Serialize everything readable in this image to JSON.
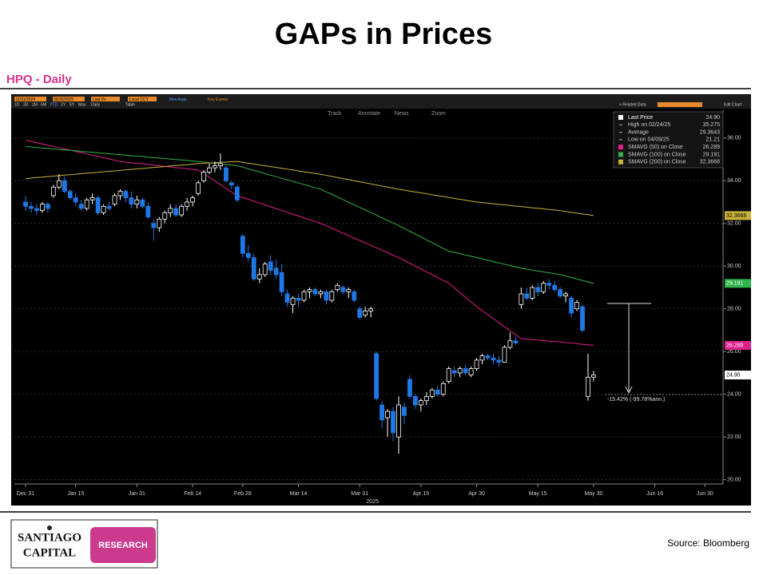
{
  "header": {
    "title": "GAPs in Prices",
    "subtitle": "HPQ - Daily"
  },
  "toolbar": {
    "start_date": "12/31/2024",
    "end_date": "05/30/2025",
    "field": "Last Px",
    "currency": "Local CCY",
    "ranges": [
      "1D",
      "3D",
      "1M",
      "6M",
      "YTD",
      "1Y",
      "5Y",
      "Max"
    ],
    "frequency": "Daily",
    "mov_avgs": "Mov Avgs",
    "key_events": "Key Events",
    "table": "Table",
    "related": "+ Related Data",
    "edit": "Edit Chart",
    "tools": [
      "Track",
      "Annotate",
      "News",
      "Zoom"
    ]
  },
  "chart_data": {
    "type": "candlestick",
    "categories": [
      "Dec 31",
      null,
      null,
      null,
      null,
      null,
      null,
      null,
      null,
      "Jan 15",
      null,
      null,
      null,
      null,
      null,
      null,
      null,
      null,
      null,
      null,
      "Jan 31",
      null,
      null,
      null,
      null,
      null,
      null,
      null,
      null,
      null,
      "Feb 14",
      null,
      null,
      null,
      null,
      null,
      null,
      null,
      null,
      "Feb 28",
      null,
      null,
      null,
      null,
      null,
      null,
      null,
      null,
      null,
      "Mar 14",
      null,
      null,
      null,
      null,
      null,
      null,
      null,
      null,
      null,
      null,
      "Mar 31",
      null,
      null,
      null,
      null,
      null,
      null,
      null,
      null,
      null,
      null,
      "Apr 15",
      null,
      null,
      null,
      null,
      null,
      null,
      null,
      null,
      null,
      "Apr 30",
      null,
      null,
      null,
      null,
      null,
      null,
      null,
      null,
      null,
      null,
      "May 15",
      null,
      null,
      null,
      null,
      null,
      null,
      null,
      null,
      null,
      "May 30",
      null,
      null,
      null,
      null,
      null,
      null,
      null,
      null,
      null,
      null,
      "Jun 16",
      null,
      null,
      null,
      null,
      null,
      null,
      null,
      null,
      "Jun 30"
    ],
    "year_label": "2025",
    "open": [
      33.0,
      32.8,
      32.7,
      32.6,
      32.9,
      33.3,
      33.7,
      34.0,
      33.5,
      33.2,
      32.9,
      32.7,
      33.1,
      33.2,
      32.5,
      32.8,
      32.9,
      33.3,
      33.5,
      33.2,
      32.9,
      33.1,
      32.8,
      32.0,
      31.8,
      32.2,
      32.5,
      32.7,
      32.4,
      32.8,
      33.0,
      33.4,
      34.0,
      34.4,
      34.6,
      34.7,
      34.6,
      33.9,
      33.7,
      31.4,
      30.6,
      30.4,
      29.4,
      29.6,
      30.2,
      29.9,
      29.7,
      28.7,
      28.2,
      28.5,
      28.4,
      28.8,
      28.9,
      28.7,
      28.8,
      28.4,
      28.9,
      29.0,
      28.8,
      28.8,
      28.0,
      27.7,
      27.9,
      25.9,
      23.5,
      22.9,
      23.2,
      22.0,
      23.4,
      24.7,
      23.9,
      23.5,
      23.7,
      23.9,
      24.2,
      24.0,
      24.6,
      25.1,
      25.0,
      25.2,
      24.9,
      25.2,
      25.6,
      25.8,
      25.7,
      25.6,
      25.5,
      26.2,
      26.5,
      28.2,
      28.7,
      28.5,
      29.0,
      28.8,
      29.2,
      29.1,
      28.9,
      28.6,
      28.5,
      28.0,
      28.1,
      23.9,
      24.8,
      null,
      null,
      null,
      null,
      null,
      null,
      null,
      null,
      null,
      null,
      null,
      null,
      null,
      null,
      null,
      null,
      null,
      null,
      null,
      null
    ],
    "high": [
      33.3,
      33.0,
      32.9,
      33.0,
      33.0,
      33.8,
      34.3,
      34.2,
      33.6,
      33.4,
      33.1,
      33.2,
      33.4,
      33.3,
      32.9,
      33.0,
      33.4,
      33.6,
      33.6,
      33.5,
      33.3,
      33.2,
      33.0,
      32.2,
      32.3,
      32.6,
      32.9,
      32.9,
      32.9,
      33.2,
      33.3,
      34.0,
      34.5,
      34.8,
      34.9,
      35.275,
      34.7,
      34.0,
      33.8,
      31.5,
      31.0,
      30.6,
      29.9,
      30.2,
      30.5,
      30.3,
      30.1,
      28.9,
      28.6,
      28.7,
      28.9,
      29.0,
      29.0,
      28.9,
      28.9,
      28.9,
      29.2,
      29.1,
      29.0,
      28.9,
      28.1,
      28.1,
      28.1,
      26.0,
      23.7,
      23.3,
      23.4,
      23.9,
      23.6,
      24.9,
      24.0,
      23.8,
      24.1,
      24.3,
      24.4,
      24.6,
      25.3,
      25.3,
      25.3,
      25.4,
      25.3,
      25.7,
      25.9,
      25.9,
      25.9,
      25.8,
      26.3,
      26.9,
      26.7,
      29.0,
      29.0,
      29.1,
      29.2,
      29.3,
      29.4,
      29.3,
      29.0,
      28.8,
      28.6,
      28.4,
      28.2,
      25.9,
      25.1,
      null,
      null,
      null,
      null,
      null,
      null,
      null,
      null,
      null,
      null,
      null,
      null,
      null,
      null,
      null,
      null,
      null,
      null,
      null,
      null
    ],
    "low": [
      32.6,
      32.5,
      32.4,
      32.5,
      32.5,
      33.2,
      33.6,
      33.4,
      33.1,
      32.8,
      32.6,
      32.6,
      32.9,
      32.4,
      32.4,
      32.6,
      32.8,
      33.1,
      33.0,
      32.7,
      32.7,
      32.7,
      32.2,
      31.2,
      31.6,
      32.0,
      32.3,
      32.3,
      32.3,
      32.6,
      32.8,
      33.3,
      33.9,
      34.3,
      34.4,
      34.5,
      33.9,
      33.6,
      33.0,
      30.4,
      30.2,
      29.3,
      29.2,
      29.5,
      29.6,
      29.4,
      28.6,
      28.1,
      27.8,
      28.1,
      28.3,
      28.5,
      28.6,
      28.5,
      28.2,
      28.3,
      28.8,
      28.7,
      28.5,
      28.3,
      27.5,
      27.6,
      27.6,
      23.7,
      22.4,
      22.0,
      21.8,
      21.21,
      22.6,
      23.8,
      23.3,
      23.2,
      23.5,
      23.8,
      23.9,
      23.9,
      24.5,
      24.8,
      24.8,
      24.9,
      24.8,
      25.1,
      25.4,
      25.6,
      25.4,
      25.3,
      25.5,
      26.1,
      26.3,
      28.0,
      28.4,
      28.4,
      28.6,
      28.7,
      28.9,
      28.8,
      28.5,
      28.3,
      27.6,
      27.9,
      26.9,
      23.7,
      24.6,
      null,
      null,
      null,
      null,
      null,
      null,
      null,
      null,
      null,
      null,
      null,
      null,
      null,
      null,
      null,
      null,
      null,
      null,
      null,
      null
    ],
    "close": [
      32.8,
      32.7,
      32.6,
      32.9,
      32.7,
      33.7,
      34.0,
      33.5,
      33.2,
      33.0,
      32.7,
      33.1,
      33.2,
      32.5,
      32.8,
      32.7,
      33.3,
      33.5,
      33.2,
      32.9,
      33.1,
      32.8,
      32.3,
      31.8,
      32.2,
      32.5,
      32.7,
      32.4,
      32.8,
      33.0,
      33.2,
      33.9,
      34.4,
      34.6,
      34.7,
      34.8,
      34.0,
      33.8,
      33.1,
      30.6,
      30.4,
      29.4,
      29.6,
      30.1,
      29.8,
      29.6,
      28.8,
      28.3,
      28.5,
      28.4,
      28.8,
      28.9,
      28.7,
      28.8,
      28.4,
      28.8,
      29.1,
      28.8,
      28.9,
      28.4,
      27.6,
      27.9,
      28.0,
      23.8,
      22.8,
      23.2,
      22.2,
      23.5,
      23.0,
      23.9,
      23.5,
      23.7,
      23.9,
      24.2,
      24.0,
      24.5,
      25.2,
      25.0,
      25.2,
      25.0,
      25.2,
      25.6,
      25.8,
      25.7,
      25.6,
      25.5,
      26.2,
      26.5,
      26.4,
      28.7,
      28.5,
      29.0,
      28.8,
      29.2,
      29.1,
      28.9,
      28.6,
      28.7,
      27.8,
      28.3,
      27.0,
      24.8,
      24.9,
      null,
      null,
      null,
      null,
      null,
      null,
      null,
      null,
      null,
      null,
      null,
      null,
      null,
      null,
      null,
      null,
      null,
      null,
      null,
      null
    ],
    "up_color": "#ffffff",
    "down_color": "#1f78e8",
    "lines": [
      {
        "color": "#e0208a",
        "values": [
          35.9,
          35.84,
          35.78,
          35.72,
          35.66,
          35.61,
          35.55,
          35.49,
          35.43,
          35.37,
          35.31,
          35.25,
          35.19,
          35.14,
          35.08,
          35.02,
          34.96,
          34.9,
          34.87,
          34.84,
          34.81,
          34.79,
          34.76,
          34.73,
          34.7,
          34.67,
          34.64,
          34.61,
          34.59,
          34.56,
          34.53,
          34.5,
          34.33,
          34.16,
          33.99,
          33.81,
          33.64,
          33.47,
          33.3,
          33.21,
          33.13,
          33.04,
          32.95,
          32.87,
          32.78,
          32.69,
          32.61,
          32.52,
          32.43,
          32.35,
          32.26,
          32.17,
          32.09,
          32.0,
          31.89,
          31.77,
          31.66,
          31.54,
          31.43,
          31.31,
          31.2,
          31.09,
          30.97,
          30.86,
          30.74,
          30.63,
          30.51,
          30.4,
          30.27,
          30.13,
          30.0,
          29.87,
          29.73,
          29.6,
          29.47,
          29.33,
          29.2,
          28.98,
          28.76,
          28.54,
          28.32,
          28.1,
          27.91,
          27.73,
          27.54,
          27.35,
          27.16,
          26.98,
          26.79,
          26.6,
          26.58,
          26.56,
          26.54,
          26.51,
          26.49,
          26.47,
          26.45,
          26.42,
          26.4,
          26.37,
          26.34,
          26.32,
          26.289,
          null,
          null,
          null,
          null,
          null,
          null,
          null,
          null,
          null,
          null,
          null,
          null,
          null,
          null,
          null,
          null,
          null,
          null,
          null,
          null
        ]
      },
      {
        "color": "#2fb34a",
        "values": [
          35.6,
          35.58,
          35.55,
          35.53,
          35.51,
          35.49,
          35.46,
          35.44,
          35.42,
          35.4,
          35.37,
          35.35,
          35.33,
          35.31,
          35.28,
          35.26,
          35.24,
          35.22,
          35.19,
          35.17,
          35.15,
          35.13,
          35.1,
          35.08,
          35.06,
          35.04,
          35.01,
          34.99,
          34.97,
          34.95,
          34.92,
          34.9,
          34.87,
          34.84,
          34.81,
          34.79,
          34.76,
          34.73,
          34.7,
          34.63,
          34.55,
          34.48,
          34.41,
          34.33,
          34.26,
          34.19,
          34.11,
          34.04,
          33.97,
          33.89,
          33.82,
          33.75,
          33.67,
          33.6,
          33.48,
          33.36,
          33.24,
          33.11,
          32.99,
          32.87,
          32.75,
          32.63,
          32.51,
          32.39,
          32.26,
          32.14,
          32.02,
          31.9,
          31.77,
          31.63,
          31.5,
          31.37,
          31.23,
          31.1,
          30.97,
          30.83,
          30.7,
          30.64,
          30.58,
          30.52,
          30.46,
          30.4,
          30.34,
          30.28,
          30.21,
          30.15,
          30.09,
          30.03,
          29.96,
          29.9,
          29.86,
          29.81,
          29.77,
          29.73,
          29.69,
          29.64,
          29.6,
          29.53,
          29.46,
          29.4,
          29.33,
          29.26,
          29.191,
          null,
          null,
          null,
          null,
          null,
          null,
          null,
          null,
          null,
          null,
          null,
          null,
          null,
          null,
          null,
          null,
          null,
          null,
          null,
          null
        ]
      },
      {
        "color": "#c9b23a",
        "values": [
          34.1,
          34.12,
          34.15,
          34.17,
          34.19,
          34.21,
          34.24,
          34.26,
          34.28,
          34.3,
          34.33,
          34.35,
          34.37,
          34.39,
          34.42,
          34.44,
          34.46,
          34.48,
          34.51,
          34.53,
          34.55,
          34.57,
          34.6,
          34.62,
          34.64,
          34.66,
          34.69,
          34.71,
          34.73,
          34.75,
          34.78,
          34.8,
          34.81,
          34.83,
          34.84,
          34.86,
          34.87,
          34.89,
          34.9,
          34.86,
          34.82,
          34.78,
          34.74,
          34.7,
          34.66,
          34.62,
          34.58,
          34.54,
          34.5,
          34.46,
          34.42,
          34.38,
          34.34,
          34.3,
          34.25,
          34.2,
          34.15,
          34.1,
          34.05,
          34.0,
          33.95,
          33.9,
          33.85,
          33.8,
          33.75,
          33.7,
          33.65,
          33.6,
          33.56,
          33.51,
          33.47,
          33.43,
          33.39,
          33.34,
          33.3,
          33.26,
          33.21,
          33.17,
          33.13,
          33.09,
          33.04,
          33.0,
          32.97,
          32.95,
          32.92,
          32.89,
          32.87,
          32.84,
          32.81,
          32.79,
          32.76,
          32.73,
          32.71,
          32.68,
          32.65,
          32.63,
          32.6,
          32.56,
          32.52,
          32.48,
          32.44,
          32.41,
          32.3668,
          null,
          null,
          null,
          null,
          null,
          null,
          null,
          null,
          null,
          null,
          null,
          null,
          null,
          null,
          null,
          null,
          null,
          null,
          null,
          null
        ]
      }
    ],
    "ylim": [
      19.8,
      37.3
    ],
    "yticks": [
      {
        "value": 20,
        "label": "20.00"
      },
      {
        "value": 22,
        "label": "22.00"
      },
      {
        "value": 24,
        "label": "24.00"
      },
      {
        "value": 26,
        "label": "26.00"
      },
      {
        "value": 28,
        "label": "28.00"
      },
      {
        "value": 30,
        "label": "30.00"
      },
      {
        "value": 32,
        "label": "32.00"
      },
      {
        "value": 34,
        "label": "34.00"
      },
      {
        "value": 36,
        "label": "36.00"
      }
    ],
    "grid": true,
    "legend": [
      {
        "label": "Last Price",
        "value": "24.90"
      },
      {
        "label": "High on 02/24/25",
        "value": "35.275"
      },
      {
        "label": "Average",
        "value": "29.3643"
      },
      {
        "label": "Low on 04/09/25",
        "value": "21.21"
      },
      {
        "label": "SMAVG (50) on Close",
        "value": "26.289"
      },
      {
        "label": "SMAVG (100) on Close",
        "value": "29.191"
      },
      {
        "label": "SMAVG (200) on Close",
        "value": "32.3668"
      }
    ],
    "annotation": "-15.42% (-99.78%ann.)"
  },
  "footer": {
    "logo_top": "SANTIAGO",
    "logo_bottom": "CAPITAL",
    "logo_tag": "RESEARCH",
    "source": "Source: Bloomberg"
  }
}
